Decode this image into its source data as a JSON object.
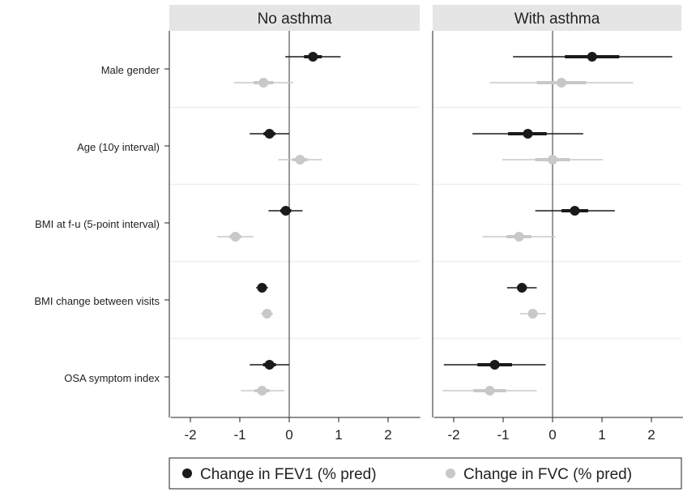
{
  "chart_data": {
    "type": "forest",
    "panels": [
      {
        "title": "No asthma"
      },
      {
        "title": "With asthma"
      }
    ],
    "covariates": [
      "Male gender",
      "Age (10y interval)",
      "BMI at f-u (5-point interval)",
      "BMI change between visits",
      "OSA symptom index"
    ],
    "x_ticks": [
      -2,
      -1,
      0,
      1,
      2
    ],
    "xlim": [
      -2.4,
      2.65
    ],
    "reference_line": 0,
    "series": [
      {
        "name": "Change in FEV1 (% pred)",
        "color": "#1a1a1a",
        "panels": [
          [
            {
              "est": 0.48,
              "lo": -0.08,
              "hi": 1.04,
              "lo_thick": 0.3,
              "hi_thick": 0.66
            },
            {
              "est": -0.4,
              "lo": -0.8,
              "hi": 0.0,
              "lo_thick": -0.52,
              "hi_thick": -0.28
            },
            {
              "est": -0.07,
              "lo": -0.42,
              "hi": 0.27,
              "lo_thick": -0.18,
              "hi_thick": 0.04
            },
            {
              "est": -0.55,
              "lo": -0.67,
              "hi": -0.43,
              "lo_thick": -0.6,
              "hi_thick": -0.5
            },
            {
              "est": -0.4,
              "lo": -0.8,
              "hi": 0.0,
              "lo_thick": -0.53,
              "hi_thick": -0.27
            }
          ],
          [
            {
              "est": 0.8,
              "lo": -0.8,
              "hi": 2.42,
              "lo_thick": 0.25,
              "hi_thick": 1.35
            },
            {
              "est": -0.5,
              "lo": -1.62,
              "hi": 0.62,
              "lo_thick": -0.9,
              "hi_thick": -0.12
            },
            {
              "est": 0.45,
              "lo": -0.35,
              "hi": 1.26,
              "lo_thick": 0.18,
              "hi_thick": 0.72
            },
            {
              "est": -0.62,
              "lo": -0.92,
              "hi": -0.32,
              "lo_thick": -0.72,
              "hi_thick": -0.52
            },
            {
              "est": -1.17,
              "lo": -2.2,
              "hi": -0.14,
              "lo_thick": -1.52,
              "hi_thick": -0.82
            }
          ]
        ]
      },
      {
        "name": "Change in FVC (% pred)",
        "color": "#c8c8c8",
        "panels": [
          [
            {
              "est": -0.52,
              "lo": -1.12,
              "hi": 0.08,
              "lo_thick": -0.72,
              "hi_thick": -0.32
            },
            {
              "est": 0.22,
              "lo": -0.22,
              "hi": 0.66,
              "lo_thick": 0.07,
              "hi_thick": 0.37
            },
            {
              "est": -1.09,
              "lo": -1.46,
              "hi": -0.72,
              "lo_thick": -1.21,
              "hi_thick": -0.97
            },
            {
              "est": -0.45,
              "lo": -0.57,
              "hi": -0.33,
              "lo_thick": -0.5,
              "hi_thick": -0.4
            },
            {
              "est": -0.55,
              "lo": -0.98,
              "hi": -0.1,
              "lo_thick": -0.7,
              "hi_thick": -0.4
            }
          ],
          [
            {
              "est": 0.18,
              "lo": -1.27,
              "hi": 1.63,
              "lo_thick": -0.32,
              "hi_thick": 0.68
            },
            {
              "est": 0.0,
              "lo": -1.02,
              "hi": 1.02,
              "lo_thick": -0.35,
              "hi_thick": 0.35
            },
            {
              "est": -0.68,
              "lo": -1.42,
              "hi": 0.06,
              "lo_thick": -0.93,
              "hi_thick": -0.43
            },
            {
              "est": -0.4,
              "lo": -0.66,
              "hi": -0.14,
              "lo_thick": -0.49,
              "hi_thick": -0.31
            },
            {
              "est": -1.27,
              "lo": -2.22,
              "hi": -0.32,
              "lo_thick": -1.6,
              "hi_thick": -0.94
            }
          ]
        ]
      }
    ]
  }
}
